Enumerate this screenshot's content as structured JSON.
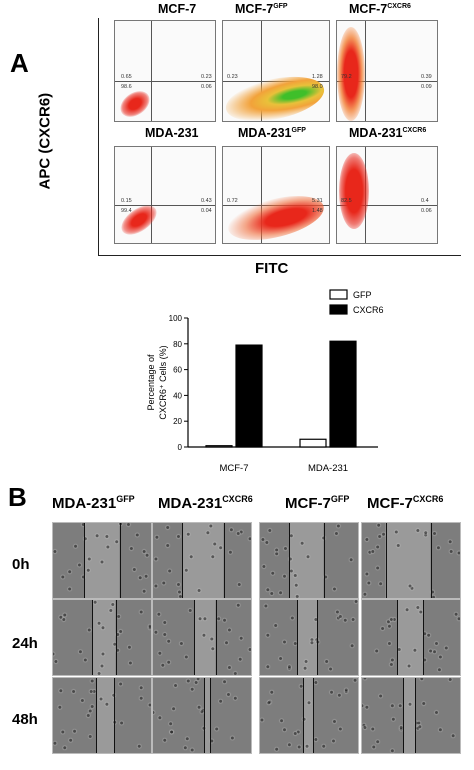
{
  "panel_a": {
    "letter": "A",
    "y_axis_label": "APC (CXCR6)",
    "x_axis_label": "FITC",
    "plots": [
      {
        "title": "MCF-7",
        "sup": "",
        "quadrants": {
          "ul": "0.65",
          "ur": "0.23",
          "ll": "98.6",
          "lr": "0.06"
        }
      },
      {
        "title": "MCF-7",
        "sup": "GFP",
        "quadrants": {
          "ul": "0.23",
          "ur": "1.28",
          "ll": "",
          "lr": "98.0"
        }
      },
      {
        "title": "MCF-7",
        "sup": "CXCR6",
        "quadrants": {
          "ul": "79.2",
          "ur": "0.39",
          "ll": "",
          "lr": "0.09"
        }
      },
      {
        "title": "MDA-231",
        "sup": "",
        "quadrants": {
          "ul": "0.15",
          "ur": "0.43",
          "ll": "99.4",
          "lr": "0.04"
        }
      },
      {
        "title": "MDA-231",
        "sup": "GFP",
        "quadrants": {
          "ul": "0.72",
          "ur": "5.31",
          "ll": "",
          "lr": "1.48"
        }
      },
      {
        "title": "MDA-231",
        "sup": "CXCR6",
        "quadrants": {
          "ul": "82.5",
          "ur": "0.4",
          "ll": "",
          "lr": "0.06"
        }
      }
    ]
  },
  "chart_data": {
    "type": "bar",
    "categories": [
      "MCF-7",
      "MDA-231"
    ],
    "series": [
      {
        "name": "GFP",
        "values": [
          1,
          6
        ],
        "color": "#ffffff"
      },
      {
        "name": "CXCR6",
        "values": [
          79,
          82
        ],
        "color": "#000000"
      }
    ],
    "ylabel_line1": "Percentage of",
    "ylabel_line2": "CXCR6⁺ Cells (%)",
    "ylim": [
      0,
      100
    ],
    "yticks": [
      0,
      20,
      40,
      60,
      80,
      100
    ],
    "legend_position": "top-right"
  },
  "panel_b": {
    "letter": "B",
    "columns": [
      {
        "base": "MDA-231",
        "sup": "GFP"
      },
      {
        "base": "MDA-231",
        "sup": "CXCR6"
      },
      {
        "base": "MCF-7",
        "sup": "GFP"
      },
      {
        "base": "MCF-7",
        "sup": "CXCR6"
      }
    ],
    "rows": [
      "0h",
      "24h",
      "48h"
    ]
  },
  "colors": {
    "cells_red": "#e8271b",
    "cells_orange": "#f2a23a",
    "cells_green": "#3fbf2a",
    "micro_bg": "#8e8e8e",
    "micro_dark": "#777777"
  }
}
